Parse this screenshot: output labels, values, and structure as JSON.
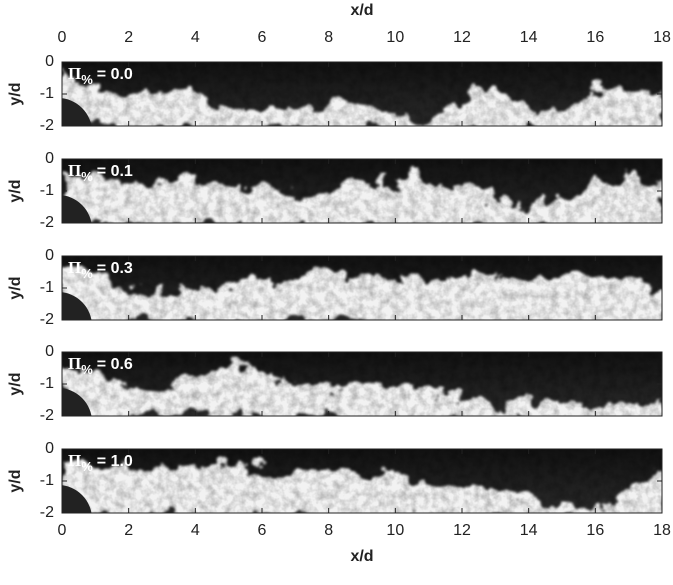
{
  "chart_data": [
    {
      "type": "image",
      "xlabel": "x/d",
      "ylabel": "y/d",
      "annotation": {
        "symbol": "Π",
        "subscript": "%",
        "text": "= 0.0"
      },
      "xlim": [
        0,
        18
      ],
      "ylim": [
        -2,
        0
      ],
      "xticks": [
        0,
        2,
        4,
        6,
        8,
        10,
        12,
        14,
        16,
        18
      ],
      "yticks": [
        0,
        -1,
        -2
      ]
    },
    {
      "type": "image",
      "ylabel": "y/d",
      "annotation": {
        "symbol": "Π",
        "subscript": "%",
        "text": "= 0.1"
      },
      "xlim": [
        0,
        18
      ],
      "ylim": [
        -2,
        0
      ],
      "xticks": [
        0,
        2,
        4,
        6,
        8,
        10,
        12,
        14,
        16,
        18
      ],
      "yticks": [
        0,
        -1,
        -2
      ]
    },
    {
      "type": "image",
      "ylabel": "y/d",
      "annotation": {
        "symbol": "Π",
        "subscript": "%",
        "text": "= 0.3"
      },
      "xlim": [
        0,
        18
      ],
      "ylim": [
        -2,
        0
      ],
      "xticks": [
        0,
        2,
        4,
        6,
        8,
        10,
        12,
        14,
        16,
        18
      ],
      "yticks": [
        0,
        -1,
        -2
      ]
    },
    {
      "type": "image",
      "ylabel": "y/d",
      "annotation": {
        "symbol": "Π",
        "subscript": "%",
        "text": "= 0.6"
      },
      "xlim": [
        0,
        18
      ],
      "ylim": [
        -2,
        0
      ],
      "xticks": [
        0,
        2,
        4,
        6,
        8,
        10,
        12,
        14,
        16,
        18
      ],
      "yticks": [
        0,
        -1,
        -2
      ]
    },
    {
      "type": "image",
      "xlabel": "x/d",
      "ylabel": "y/d",
      "annotation": {
        "symbol": "Π",
        "subscript": "%",
        "text": "= 1.0"
      },
      "xlim": [
        0,
        18
      ],
      "ylim": [
        -2,
        0
      ],
      "xticks": [
        0,
        2,
        4,
        6,
        8,
        10,
        12,
        14,
        16,
        18
      ],
      "yticks": [
        0,
        -1,
        -2
      ]
    }
  ]
}
